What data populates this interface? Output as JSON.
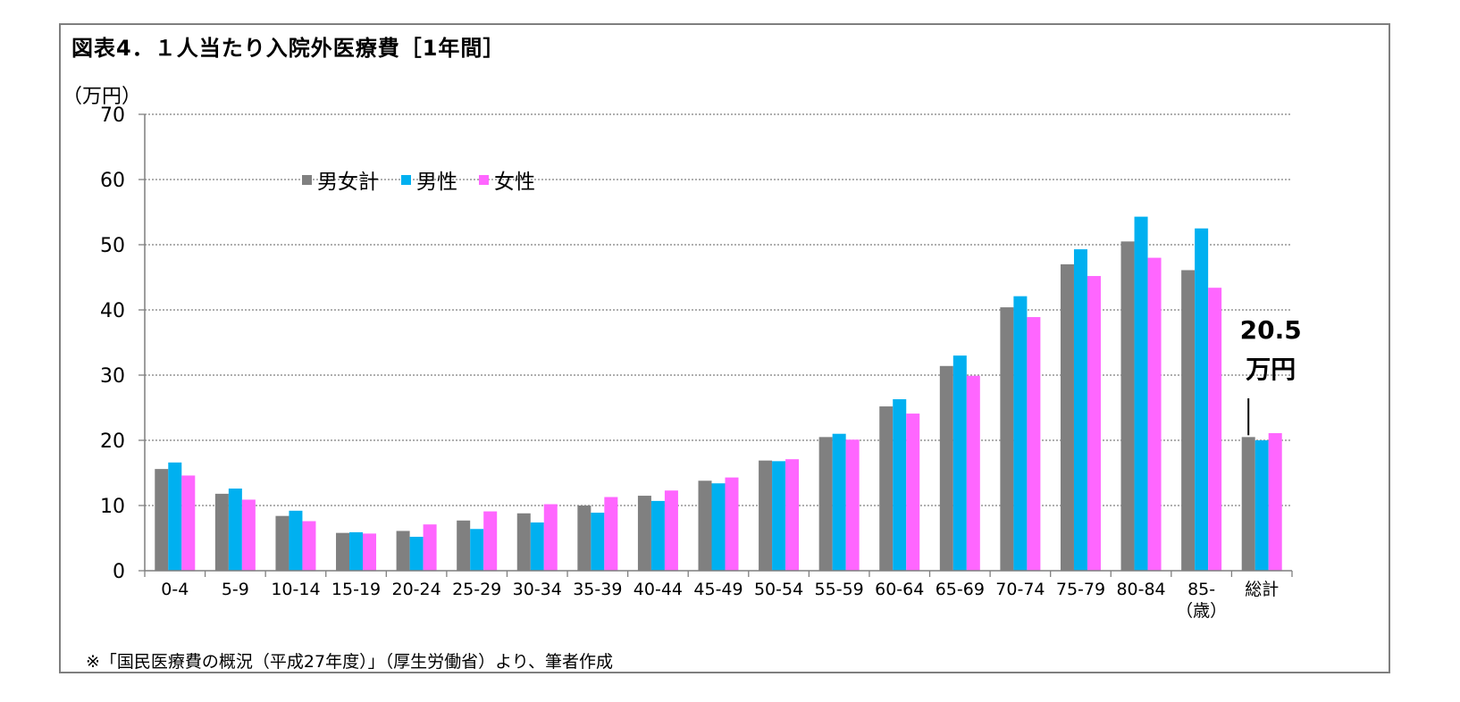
{
  "title": "図表4．１人当たり入院外医療費［1年間］",
  "unit_label": "（万円）",
  "source_note": "※「国民医療費の概況（平成27年度）」（厚生労働省）より、筆者作成",
  "colors": {
    "total": "#808080",
    "male": "#00b0f0",
    "female": "#ff66ff",
    "grid": "#7f7f7f",
    "axis": "#7f7f7f"
  },
  "chart_data": {
    "type": "bar",
    "title": "図表4．１人当たり入院外医療費［1年間］",
    "ylabel": "（万円）",
    "xlabel": "",
    "ylim": [
      0,
      70
    ],
    "yticks": [
      0,
      10,
      20,
      30,
      40,
      50,
      60,
      70
    ],
    "grid": true,
    "legend_position": "top-left",
    "categories": [
      "0-4",
      "5-9",
      "10-14",
      "15-19",
      "20-24",
      "25-29",
      "30-34",
      "35-39",
      "40-44",
      "45-49",
      "50-54",
      "55-59",
      "60-64",
      "65-69",
      "70-74",
      "75-79",
      "80-84",
      "85-",
      "総計"
    ],
    "category_sublabel": {
      "index": 17,
      "text": "（歳）"
    },
    "series": [
      {
        "name": "男女計",
        "color": "#808080",
        "values": [
          15.6,
          11.8,
          8.4,
          5.8,
          6.1,
          7.7,
          8.8,
          10.0,
          11.5,
          13.8,
          16.9,
          20.5,
          25.2,
          31.4,
          40.4,
          47.0,
          50.5,
          46.1,
          20.5
        ]
      },
      {
        "name": "男性",
        "color": "#00b0f0",
        "values": [
          16.6,
          12.6,
          9.2,
          5.9,
          5.2,
          6.4,
          7.4,
          8.9,
          10.7,
          13.4,
          16.8,
          21.0,
          26.3,
          33.0,
          42.1,
          49.3,
          54.3,
          52.5,
          20.0
        ]
      },
      {
        "name": "女性",
        "color": "#ff66ff",
        "values": [
          14.6,
          10.9,
          7.6,
          5.7,
          7.1,
          9.1,
          10.2,
          11.3,
          12.3,
          14.3,
          17.1,
          20.1,
          24.1,
          29.9,
          38.9,
          45.2,
          48.0,
          43.4,
          21.1
        ]
      }
    ],
    "annotation": {
      "lines": [
        "20.5",
        "万円"
      ],
      "category_index": 18
    }
  }
}
